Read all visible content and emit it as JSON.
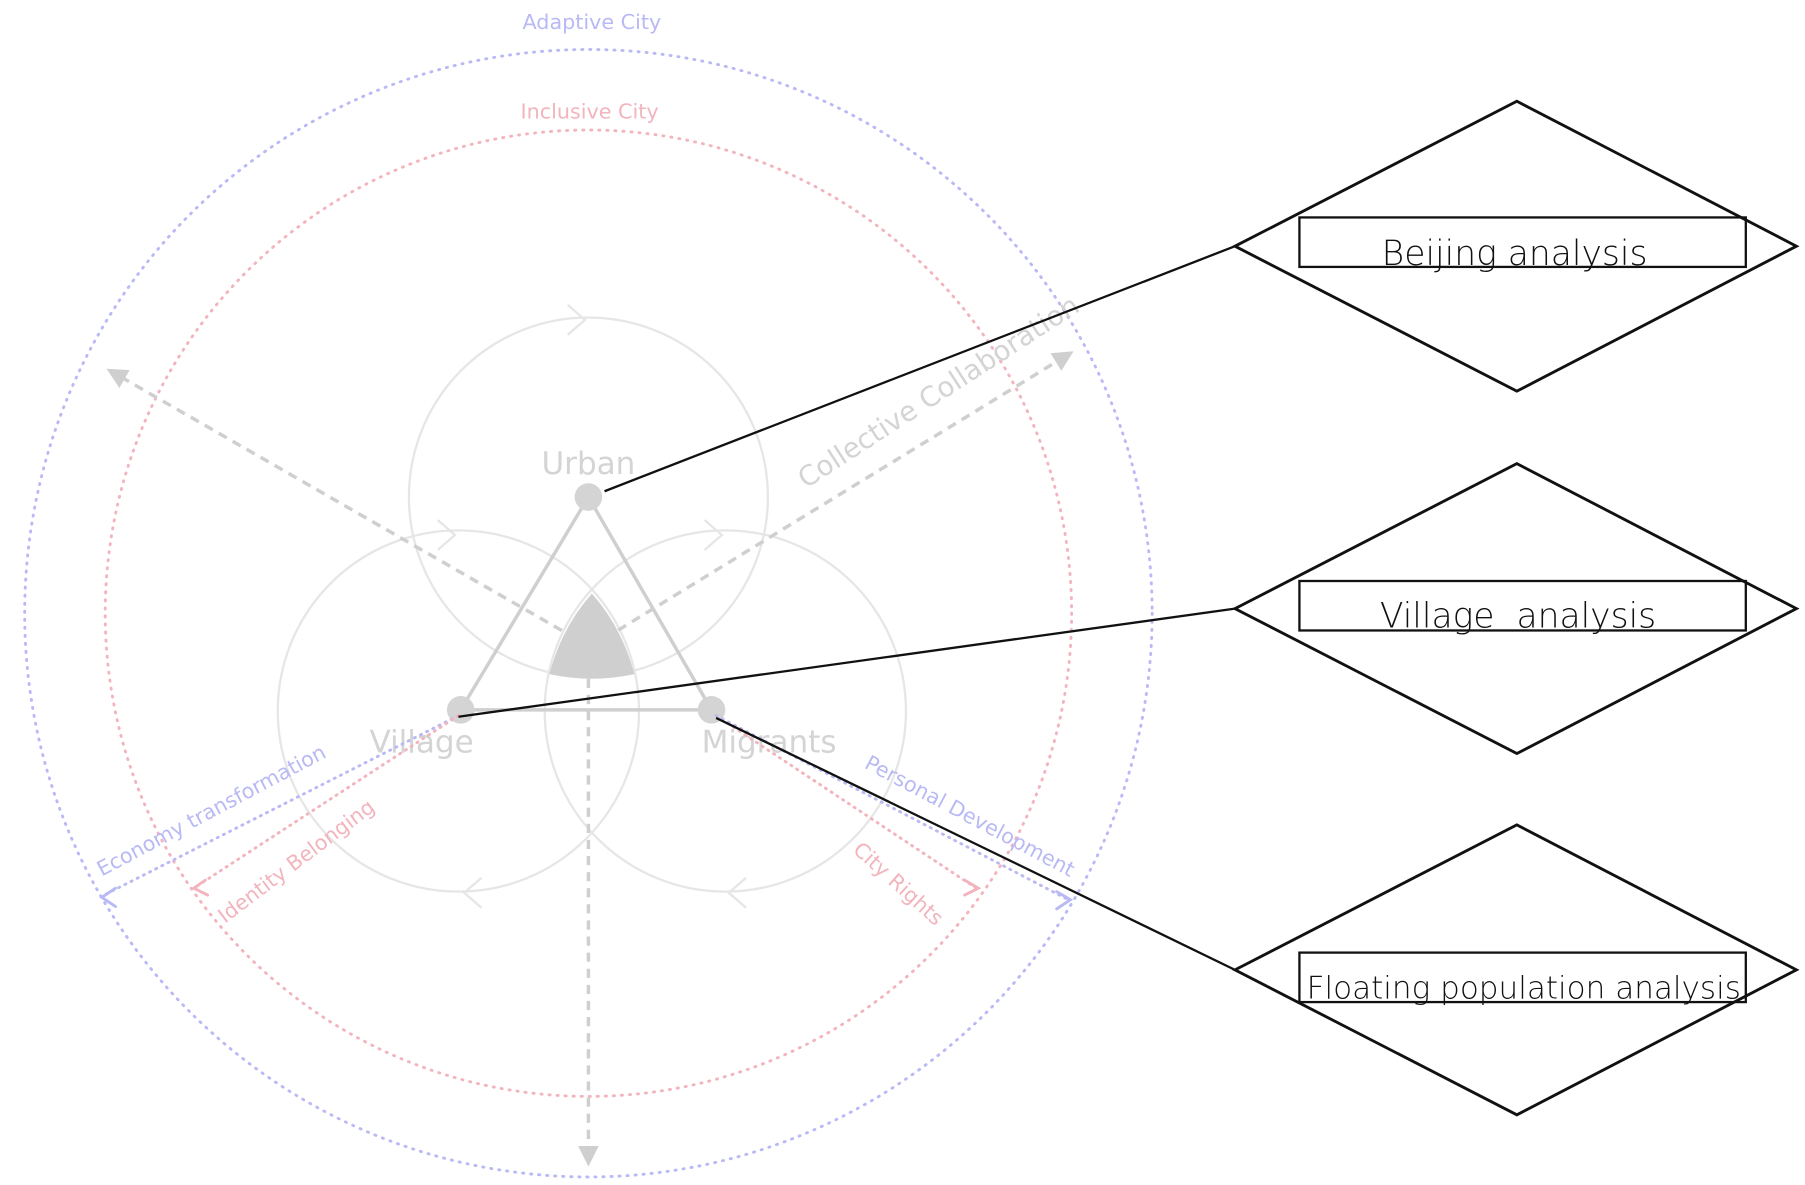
{
  "rings": {
    "adaptive": "Adaptive City",
    "inclusive": "Inclusive City"
  },
  "nodes": {
    "urban": "Urban",
    "village": "Village",
    "migrants": "Migrants"
  },
  "labels": {
    "collaboration": "Collective Collaboration",
    "economy": "Economy transformation",
    "identity": "Identity Belonging",
    "personal": "Personal Development",
    "rights": "City Rights"
  },
  "panels": [
    "Beijing analysis",
    "Village  analysis",
    "Floating population analysis"
  ]
}
